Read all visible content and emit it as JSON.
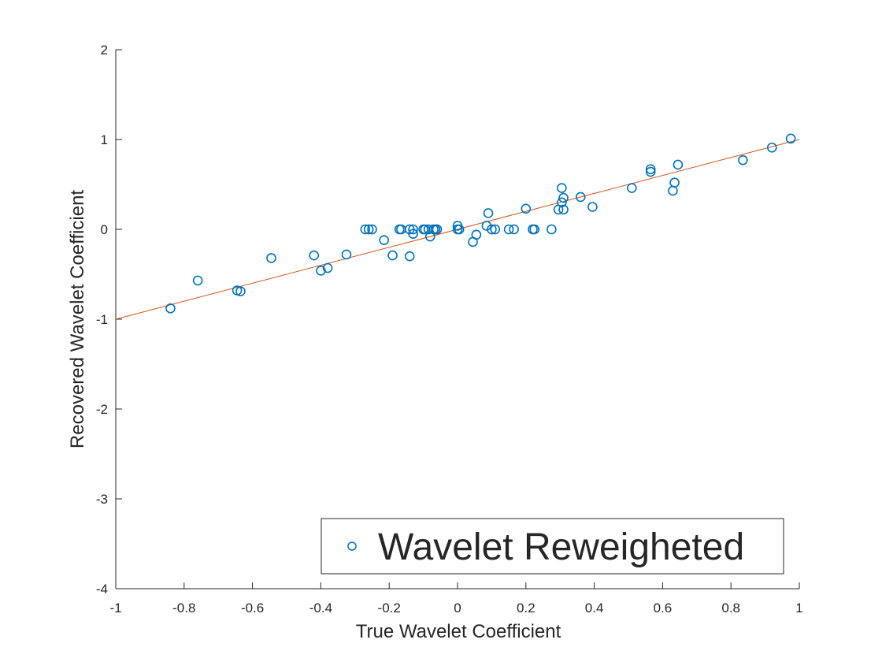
{
  "chart_data": {
    "type": "scatter",
    "title": "",
    "xlabel": "True Wavelet Coefficient",
    "ylabel": "Recovered Wavelet Coefficient",
    "xlim": [
      -1,
      1
    ],
    "ylim": [
      -4,
      2
    ],
    "xticks": [
      -1,
      -0.8,
      -0.6,
      -0.4,
      -0.2,
      0,
      0.2,
      0.4,
      0.6,
      0.8,
      1
    ],
    "xtick_labels": [
      "-1",
      "-0.8",
      "-0.6",
      "-0.4",
      "-0.2",
      "0",
      "0.2",
      "0.4",
      "0.6",
      "0.8",
      "1"
    ],
    "yticks": [
      -4,
      -3,
      -2,
      -1,
      0,
      1,
      2
    ],
    "ytick_labels": [
      "-4",
      "-3",
      "-2",
      "-1",
      "0",
      "1",
      "2"
    ],
    "grid": false,
    "legend_position": "bottom-right",
    "series": [
      {
        "name": "Wavelet Reweigheted",
        "marker": "open-circle",
        "color": "#0072BD",
        "points": [
          [
            -0.84,
            -0.88
          ],
          [
            -0.76,
            -0.57
          ],
          [
            -0.645,
            -0.68
          ],
          [
            -0.635,
            -0.69
          ],
          [
            -0.545,
            -0.32
          ],
          [
            -0.42,
            -0.29
          ],
          [
            -0.4,
            -0.46
          ],
          [
            -0.38,
            -0.43
          ],
          [
            -0.325,
            -0.28
          ],
          [
            -0.27,
            0.0
          ],
          [
            -0.26,
            0.0
          ],
          [
            -0.25,
            0.0
          ],
          [
            -0.215,
            -0.12
          ],
          [
            -0.19,
            -0.29
          ],
          [
            -0.17,
            0.0
          ],
          [
            -0.165,
            0.0
          ],
          [
            -0.14,
            -0.3
          ],
          [
            -0.14,
            0.0
          ],
          [
            -0.13,
            0.0
          ],
          [
            -0.13,
            -0.05
          ],
          [
            -0.1,
            0.0
          ],
          [
            -0.095,
            0.0
          ],
          [
            -0.085,
            0.0
          ],
          [
            -0.08,
            -0.08
          ],
          [
            -0.07,
            0.0
          ],
          [
            -0.065,
            0.0
          ],
          [
            -0.06,
            0.0
          ],
          [
            0.0,
            0.04
          ],
          [
            0.0,
            0.0
          ],
          [
            0.005,
            0.0
          ],
          [
            0.045,
            -0.14
          ],
          [
            0.055,
            -0.06
          ],
          [
            0.085,
            0.04
          ],
          [
            0.09,
            0.18
          ],
          [
            0.1,
            0.0
          ],
          [
            0.11,
            0.0
          ],
          [
            0.15,
            0.0
          ],
          [
            0.165,
            0.0
          ],
          [
            0.2,
            0.23
          ],
          [
            0.22,
            0.0
          ],
          [
            0.225,
            0.0
          ],
          [
            0.275,
            0.0
          ],
          [
            0.295,
            0.22
          ],
          [
            0.305,
            0.46
          ],
          [
            0.305,
            0.3
          ],
          [
            0.31,
            0.35
          ],
          [
            0.31,
            0.22
          ],
          [
            0.36,
            0.36
          ],
          [
            0.395,
            0.25
          ],
          [
            0.51,
            0.46
          ],
          [
            0.565,
            0.67
          ],
          [
            0.565,
            0.64
          ],
          [
            0.63,
            0.43
          ],
          [
            0.635,
            0.52
          ],
          [
            0.645,
            0.72
          ],
          [
            0.835,
            0.77
          ],
          [
            0.92,
            0.91
          ],
          [
            0.975,
            1.01
          ]
        ]
      },
      {
        "name": "",
        "type": "line",
        "color": "#D95319",
        "points": [
          [
            -1,
            -1
          ],
          [
            1,
            1
          ]
        ]
      }
    ]
  }
}
